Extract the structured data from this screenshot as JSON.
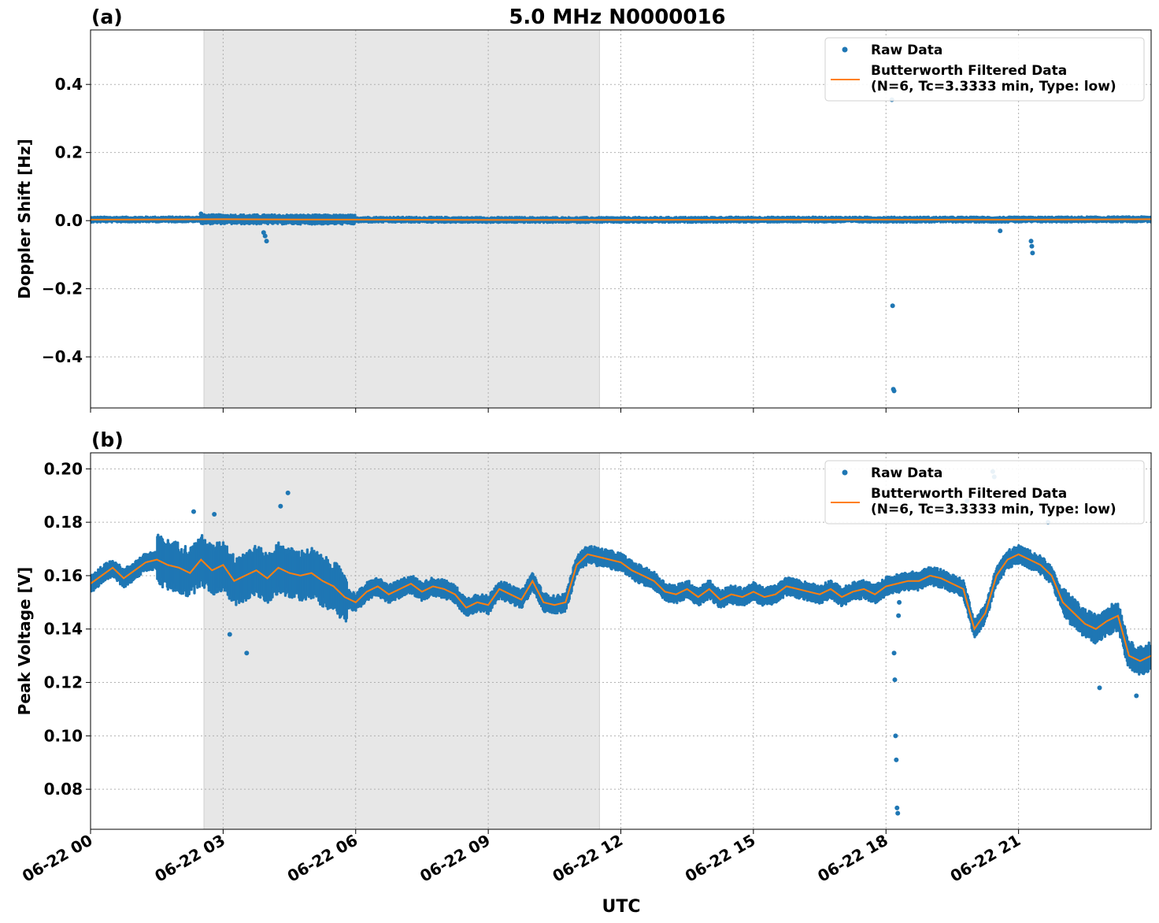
{
  "figure": {
    "title": "5.0 MHz N0000016",
    "xlabel": "UTC",
    "shaded_interval": [
      "06-22 02:34",
      "06-22 11:31"
    ]
  },
  "chart_data": [
    {
      "type": "scatter",
      "panel_label": "(a)",
      "title": "5.0 MHz N0000016",
      "xlabel": "UTC",
      "ylabel": "Doppler Shift [Hz]",
      "xlim": [
        "06-22 00:00",
        "06-23 00:00"
      ],
      "ylim": [
        -0.55,
        0.56
      ],
      "x_ticks": [
        "06-22 00",
        "06-22 03",
        "06-22 06",
        "06-22 09",
        "06-22 12",
        "06-22 15",
        "06-22 18",
        "06-22 21"
      ],
      "y_ticks": [
        "0.4",
        "0.2",
        "0.0",
        "−0.2",
        "−0.4"
      ],
      "y_tick_values": [
        0.4,
        0.2,
        0.0,
        -0.2,
        -0.4
      ],
      "grid": true,
      "legend_position": "top-right",
      "series": [
        {
          "name": "Raw Data",
          "style": "points",
          "color": "#1f77b4",
          "x": [
            "02:30",
            "03:55",
            "03:57",
            "03:59",
            "18:08",
            "18:09",
            "18:10",
            "18:11",
            "20:35",
            "21:17",
            "21:18",
            "21:19"
          ],
          "y": [
            0.02,
            -0.035,
            -0.045,
            -0.06,
            0.355,
            -0.25,
            -0.495,
            -0.5,
            -0.03,
            -0.06,
            -0.075,
            -0.095
          ]
        },
        {
          "name": "Butterworth Filtered Data\n(N=6, Tc=3.3333 min, Type: low)",
          "style": "line",
          "color": "#ff7f0e",
          "x": [
            "00:00",
            "03:00",
            "06:00",
            "09:00",
            "12:00",
            "15:00",
            "18:00",
            "21:00",
            "24:00"
          ],
          "y": [
            0.003,
            0.004,
            0.003,
            0.002,
            0.002,
            0.003,
            0.003,
            0.003,
            0.004
          ]
        }
      ]
    },
    {
      "type": "scatter",
      "panel_label": "(b)",
      "xlabel": "UTC",
      "ylabel": "Peak Voltage [V]",
      "xlim": [
        "06-22 00:00",
        "06-23 00:00"
      ],
      "ylim": [
        0.065,
        0.206
      ],
      "x_ticks": [
        "06-22 00",
        "06-22 03",
        "06-22 06",
        "06-22 09",
        "06-22 12",
        "06-22 15",
        "06-22 18",
        "06-22 21"
      ],
      "y_ticks": [
        "0.20",
        "0.18",
        "0.16",
        "0.14",
        "0.12",
        "0.10",
        "0.08"
      ],
      "y_tick_values": [
        0.2,
        0.18,
        0.16,
        0.14,
        0.12,
        0.1,
        0.08
      ],
      "grid": true,
      "legend_position": "top-right",
      "series": [
        {
          "name": "Raw Data",
          "style": "points",
          "color": "#1f77b4",
          "outliers_x": [
            "02:20",
            "02:48",
            "03:09",
            "03:32",
            "04:18",
            "04:28",
            "18:11",
            "18:12",
            "18:13",
            "18:14",
            "18:15",
            "18:16",
            "18:17",
            "18:18",
            "19:50",
            "20:25",
            "20:27",
            "21:40",
            "22:50",
            "23:40"
          ],
          "outliers_y": [
            0.184,
            0.183,
            0.138,
            0.131,
            0.186,
            0.191,
            0.131,
            0.121,
            0.1,
            0.091,
            0.073,
            0.071,
            0.145,
            0.15,
            0.188,
            0.199,
            0.197,
            0.18,
            0.118,
            0.115
          ]
        },
        {
          "name": "Butterworth Filtered Data\n(N=6, Tc=3.3333 min, Type: low)",
          "style": "line",
          "color": "#ff7f0e",
          "x": [
            "00:00",
            "00:15",
            "00:30",
            "00:45",
            "01:00",
            "01:15",
            "01:30",
            "01:45",
            "02:00",
            "02:15",
            "02:30",
            "02:45",
            "03:00",
            "03:15",
            "03:30",
            "03:45",
            "04:00",
            "04:15",
            "04:30",
            "04:45",
            "05:00",
            "05:15",
            "05:30",
            "05:45",
            "06:00",
            "06:15",
            "06:30",
            "06:45",
            "07:00",
            "07:15",
            "07:30",
            "07:45",
            "08:00",
            "08:15",
            "08:30",
            "08:45",
            "09:00",
            "09:15",
            "09:30",
            "09:45",
            "10:00",
            "10:15",
            "10:30",
            "10:45",
            "11:00",
            "11:15",
            "11:30",
            "11:45",
            "12:00",
            "12:15",
            "12:30",
            "12:45",
            "13:00",
            "13:15",
            "13:30",
            "13:45",
            "14:00",
            "14:15",
            "14:30",
            "14:45",
            "15:00",
            "15:15",
            "15:30",
            "15:45",
            "16:00",
            "16:15",
            "16:30",
            "16:45",
            "17:00",
            "17:15",
            "17:30",
            "17:45",
            "18:00",
            "18:15",
            "18:30",
            "18:45",
            "19:00",
            "19:15",
            "19:30",
            "19:45",
            "20:00",
            "20:15",
            "20:30",
            "20:45",
            "21:00",
            "21:15",
            "21:30",
            "21:45",
            "22:00",
            "22:15",
            "22:30",
            "22:45",
            "23:00",
            "23:15",
            "23:30",
            "23:45",
            "24:00"
          ],
          "y": [
            0.157,
            0.16,
            0.163,
            0.159,
            0.162,
            0.165,
            0.166,
            0.164,
            0.163,
            0.161,
            0.166,
            0.162,
            0.164,
            0.158,
            0.16,
            0.162,
            0.159,
            0.163,
            0.161,
            0.16,
            0.161,
            0.158,
            0.156,
            0.152,
            0.15,
            0.154,
            0.156,
            0.153,
            0.155,
            0.157,
            0.154,
            0.156,
            0.155,
            0.153,
            0.148,
            0.15,
            0.149,
            0.155,
            0.153,
            0.151,
            0.158,
            0.15,
            0.149,
            0.15,
            0.164,
            0.168,
            0.167,
            0.166,
            0.165,
            0.162,
            0.16,
            0.158,
            0.154,
            0.153,
            0.155,
            0.152,
            0.155,
            0.151,
            0.153,
            0.152,
            0.154,
            0.152,
            0.153,
            0.156,
            0.155,
            0.154,
            0.153,
            0.155,
            0.152,
            0.154,
            0.155,
            0.153,
            0.156,
            0.157,
            0.158,
            0.158,
            0.16,
            0.159,
            0.157,
            0.155,
            0.14,
            0.146,
            0.16,
            0.166,
            0.168,
            0.166,
            0.164,
            0.16,
            0.15,
            0.146,
            0.142,
            0.14,
            0.143,
            0.145,
            0.13,
            0.128,
            0.13
          ]
        }
      ]
    }
  ]
}
